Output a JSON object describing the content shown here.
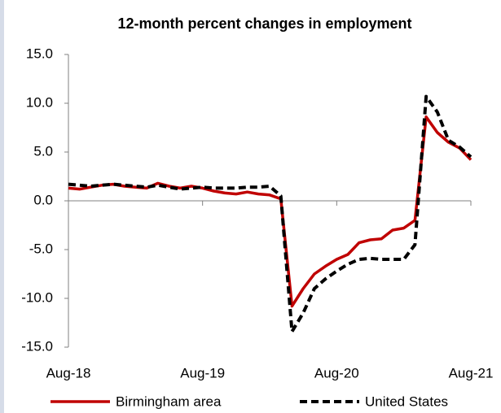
{
  "chart_data": {
    "type": "line",
    "title": "12-month percent changes in employment",
    "categories": [
      "Aug-18",
      null,
      null,
      null,
      null,
      null,
      null,
      null,
      null,
      null,
      null,
      null,
      "Aug-19",
      null,
      null,
      null,
      null,
      null,
      null,
      null,
      null,
      null,
      null,
      null,
      "Aug-20",
      null,
      null,
      null,
      null,
      null,
      null,
      null,
      null,
      null,
      null,
      null,
      "Aug-21"
    ],
    "series": [
      {
        "name": "Birmingham area",
        "color": "#c00000",
        "dash": false,
        "values": [
          1.3,
          1.2,
          1.4,
          1.6,
          1.7,
          1.5,
          1.4,
          1.3,
          1.8,
          1.5,
          1.3,
          1.5,
          1.3,
          1.0,
          0.8,
          0.7,
          0.9,
          0.7,
          0.6,
          0.2,
          -10.8,
          -9.0,
          -7.5,
          -6.7,
          -6.0,
          -5.5,
          -4.3,
          -4.0,
          -3.9,
          -3.0,
          -2.8,
          -2.0,
          8.6,
          7.0,
          6.0,
          5.4,
          4.2
        ]
      },
      {
        "name": "United States",
        "color": "#000000",
        "dash": true,
        "values": [
          1.7,
          1.6,
          1.5,
          1.6,
          1.7,
          1.6,
          1.5,
          1.4,
          1.6,
          1.4,
          1.2,
          1.3,
          1.4,
          1.3,
          1.3,
          1.3,
          1.4,
          1.4,
          1.5,
          0.5,
          -13.4,
          -11.5,
          -9.0,
          -8.0,
          -7.2,
          -6.5,
          -6.0,
          -5.9,
          -6.0,
          -6.0,
          -6.0,
          -4.5,
          10.7,
          9.1,
          6.2,
          5.5,
          4.5
        ]
      }
    ],
    "ylim": [
      -15,
      15
    ],
    "yticks": [
      {
        "value": -15,
        "label": "-15.0"
      },
      {
        "value": -10,
        "label": "-10.0"
      },
      {
        "value": -5,
        "label": "-5.0"
      },
      {
        "value": 0,
        "label": "0.0"
      },
      {
        "value": 5,
        "label": "5.0"
      },
      {
        "value": 10,
        "label": "10.0"
      },
      {
        "value": 15,
        "label": "15.0"
      }
    ],
    "grid": false
  }
}
